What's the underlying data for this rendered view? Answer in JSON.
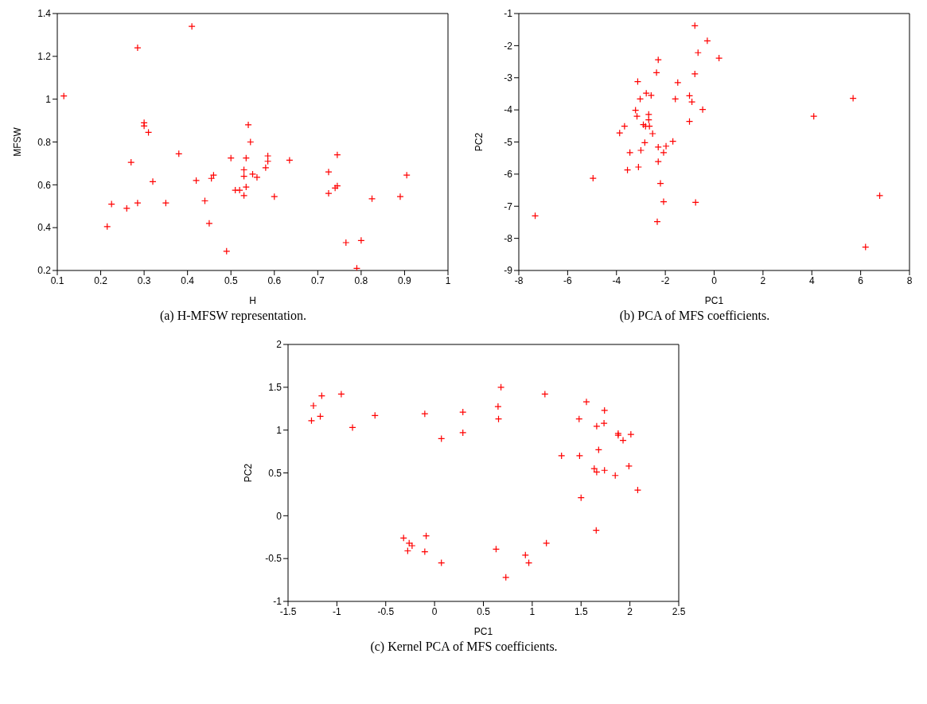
{
  "chart_data": [
    {
      "type": "scatter",
      "title": "(a) H-MFSW representation.",
      "xlabel": "H",
      "ylabel": "MFSW",
      "color": "#ff0000",
      "marker": "cross",
      "grid": false,
      "legend": false,
      "x": [
        0.115,
        0.285,
        0.41,
        0.3,
        0.3,
        0.31,
        0.38,
        0.27,
        0.32,
        0.225,
        0.215,
        0.26,
        0.285,
        0.35,
        0.42,
        0.44,
        0.45,
        0.455,
        0.46,
        0.49,
        0.5,
        0.51,
        0.52,
        0.53,
        0.53,
        0.53,
        0.535,
        0.535,
        0.54,
        0.545,
        0.55,
        0.56,
        0.58,
        0.585,
        0.585,
        0.6,
        0.635,
        0.725,
        0.725,
        0.745,
        0.74,
        0.745,
        0.765,
        0.8,
        0.79,
        0.825,
        0.89,
        0.905
      ],
      "values": [
        1.015,
        1.24,
        1.34,
        0.875,
        0.89,
        0.845,
        0.745,
        0.705,
        0.615,
        0.51,
        0.405,
        0.49,
        0.515,
        0.515,
        0.62,
        0.525,
        0.42,
        0.63,
        0.645,
        0.29,
        0.725,
        0.575,
        0.575,
        0.55,
        0.67,
        0.64,
        0.725,
        0.59,
        0.88,
        0.8,
        0.65,
        0.635,
        0.68,
        0.735,
        0.71,
        0.545,
        0.715,
        0.66,
        0.56,
        0.595,
        0.585,
        0.74,
        0.33,
        0.34,
        0.21,
        0.535,
        0.545,
        0.645
      ],
      "xlim": [
        0.1,
        1
      ],
      "xticks": [
        0.1,
        0.2,
        0.3,
        0.4,
        0.5,
        0.6,
        0.7,
        0.8,
        0.9,
        1
      ],
      "ylim": [
        0.2,
        1.4
      ],
      "yticks": [
        0.2,
        0.4,
        0.6,
        0.8,
        1,
        1.2,
        1.4
      ]
    },
    {
      "type": "scatter",
      "title": "(b) PCA of MFS coefficients.",
      "xlabel": "PC1",
      "ylabel": "PC2",
      "color": "#ff0000",
      "marker": "cross",
      "grid": false,
      "legend": false,
      "x": [
        -7.33,
        -4.96,
        -3.55,
        -3.1,
        -3.87,
        -3.67,
        -3.45,
        -3.22,
        -3.16,
        -3.13,
        -3.03,
        -3.0,
        -2.84,
        -2.9,
        -2.81,
        -2.65,
        -2.78,
        -2.58,
        -2.68,
        -2.68,
        -2.52,
        -2.29,
        -2.07,
        -2.29,
        -2.2,
        -2.07,
        -2.33,
        -2.36,
        -2.29,
        -1.97,
        -1.69,
        -1.59,
        -1.49,
        -1.01,
        -0.91,
        -1.01,
        -0.79,
        -0.79,
        -0.76,
        -0.66,
        -0.47,
        -0.28,
        0.2,
        4.08,
        5.69,
        6.78,
        6.2
      ],
      "values": [
        -7.3,
        -6.13,
        -5.87,
        -5.78,
        -4.72,
        -4.51,
        -5.33,
        -4.01,
        -4.2,
        -3.12,
        -3.66,
        -5.26,
        -5.02,
        -4.46,
        -4.51,
        -4.51,
        -3.48,
        -3.55,
        -4.14,
        -4.31,
        -4.74,
        -5.16,
        -5.33,
        -5.61,
        -6.29,
        -6.86,
        -7.48,
        -2.84,
        -2.44,
        -5.13,
        -4.98,
        -3.66,
        -3.15,
        -3.56,
        -3.75,
        -4.36,
        -1.38,
        -2.88,
        -6.88,
        -2.22,
        -3.99,
        -1.85,
        -2.39,
        -4.2,
        -3.64,
        -6.67,
        -8.27
      ],
      "xlim": [
        -8,
        8
      ],
      "xticks": [
        -8,
        -6,
        -4,
        -2,
        0,
        2,
        4,
        6,
        8
      ],
      "ylim": [
        -9,
        -1
      ],
      "yticks": [
        -9,
        -8,
        -7,
        -6,
        -5,
        -4,
        -3,
        -2,
        -1
      ]
    },
    {
      "type": "scatter",
      "title": "(c) Kernel PCA of MFS coefficients.",
      "xlabel": "PC1",
      "ylabel": "PC2",
      "color": "#ff0000",
      "marker": "cross",
      "grid": false,
      "legend": false,
      "x": [
        -1.24,
        -1.155,
        -0.955,
        -1.26,
        -1.17,
        -0.84,
        -0.61,
        -0.1,
        0.29,
        0.29,
        0.07,
        -0.317,
        -0.086,
        -0.26,
        -0.23,
        -0.275,
        -0.1,
        0.07,
        0.68,
        0.65,
        0.655,
        1.13,
        1.555,
        1.74,
        1.48,
        1.735,
        1.66,
        1.88,
        1.88,
        2.01,
        1.93,
        1.68,
        1.3,
        1.485,
        1.635,
        1.66,
        1.74,
        1.85,
        1.99,
        2.08,
        1.5,
        1.655,
        1.145,
        0.63,
        0.93,
        0.965,
        0.73
      ],
      "values": [
        1.285,
        1.4,
        1.42,
        1.11,
        1.16,
        1.03,
        1.17,
        1.19,
        1.21,
        0.97,
        0.9,
        -0.26,
        -0.235,
        -0.32,
        -0.35,
        -0.41,
        -0.42,
        -0.55,
        1.5,
        1.275,
        1.13,
        1.42,
        1.33,
        1.23,
        1.13,
        1.08,
        1.045,
        0.96,
        0.94,
        0.95,
        0.88,
        0.77,
        0.7,
        0.7,
        0.55,
        0.51,
        0.53,
        0.47,
        0.58,
        0.3,
        0.21,
        -0.17,
        -0.32,
        -0.39,
        -0.46,
        -0.55,
        -0.72
      ],
      "xlim": [
        -1.5,
        2.5
      ],
      "xticks": [
        -1.5,
        -1,
        -0.5,
        0,
        0.5,
        1,
        1.5,
        2,
        2.5
      ],
      "ylim": [
        -1,
        2
      ],
      "yticks": [
        -1,
        -0.5,
        0,
        0.5,
        1,
        1.5,
        2
      ]
    }
  ]
}
